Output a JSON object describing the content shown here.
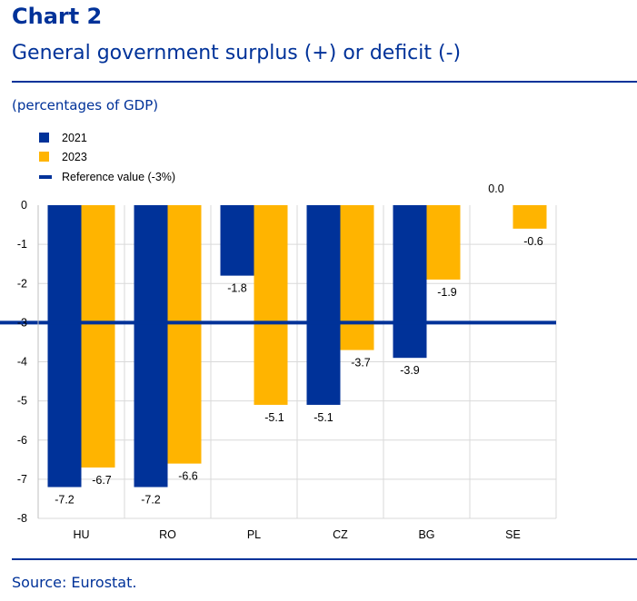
{
  "header": {
    "chart_number": "Chart 2",
    "title": "General government surplus (+) or deficit (-)",
    "unit": "(percentages of GDP)"
  },
  "footer": {
    "source": "Source: Eurostat."
  },
  "colors": {
    "brand": "#003299",
    "s2021": "#003299",
    "s2023": "#ffb400",
    "reference": "#003299",
    "grid": "#d9d9d9"
  },
  "chart_data": {
    "type": "bar",
    "categories": [
      "HU",
      "RO",
      "PL",
      "CZ",
      "BG",
      "SE"
    ],
    "series": [
      {
        "name": "2021",
        "values": [
          -7.2,
          -7.2,
          -1.8,
          -5.1,
          -3.9,
          0.0
        ],
        "labels": [
          "-7.2",
          "-7.2",
          "-1.8",
          "-5.1",
          "-3.9",
          "0.0"
        ]
      },
      {
        "name": "2023",
        "values": [
          -6.7,
          -6.6,
          -5.1,
          -3.7,
          -1.9,
          -0.6
        ],
        "labels": [
          "-6.7",
          "-6.6",
          "-5.1",
          "-3.7",
          "-1.9",
          "-0.6"
        ]
      }
    ],
    "reference": {
      "name": "Reference value (-3%)",
      "value": -3
    },
    "ylim": [
      -8,
      0
    ],
    "yticks": [
      0,
      -1,
      -2,
      -3,
      -4,
      -5,
      -6,
      -7,
      -8
    ],
    "grid": true,
    "legend": "top-left"
  }
}
